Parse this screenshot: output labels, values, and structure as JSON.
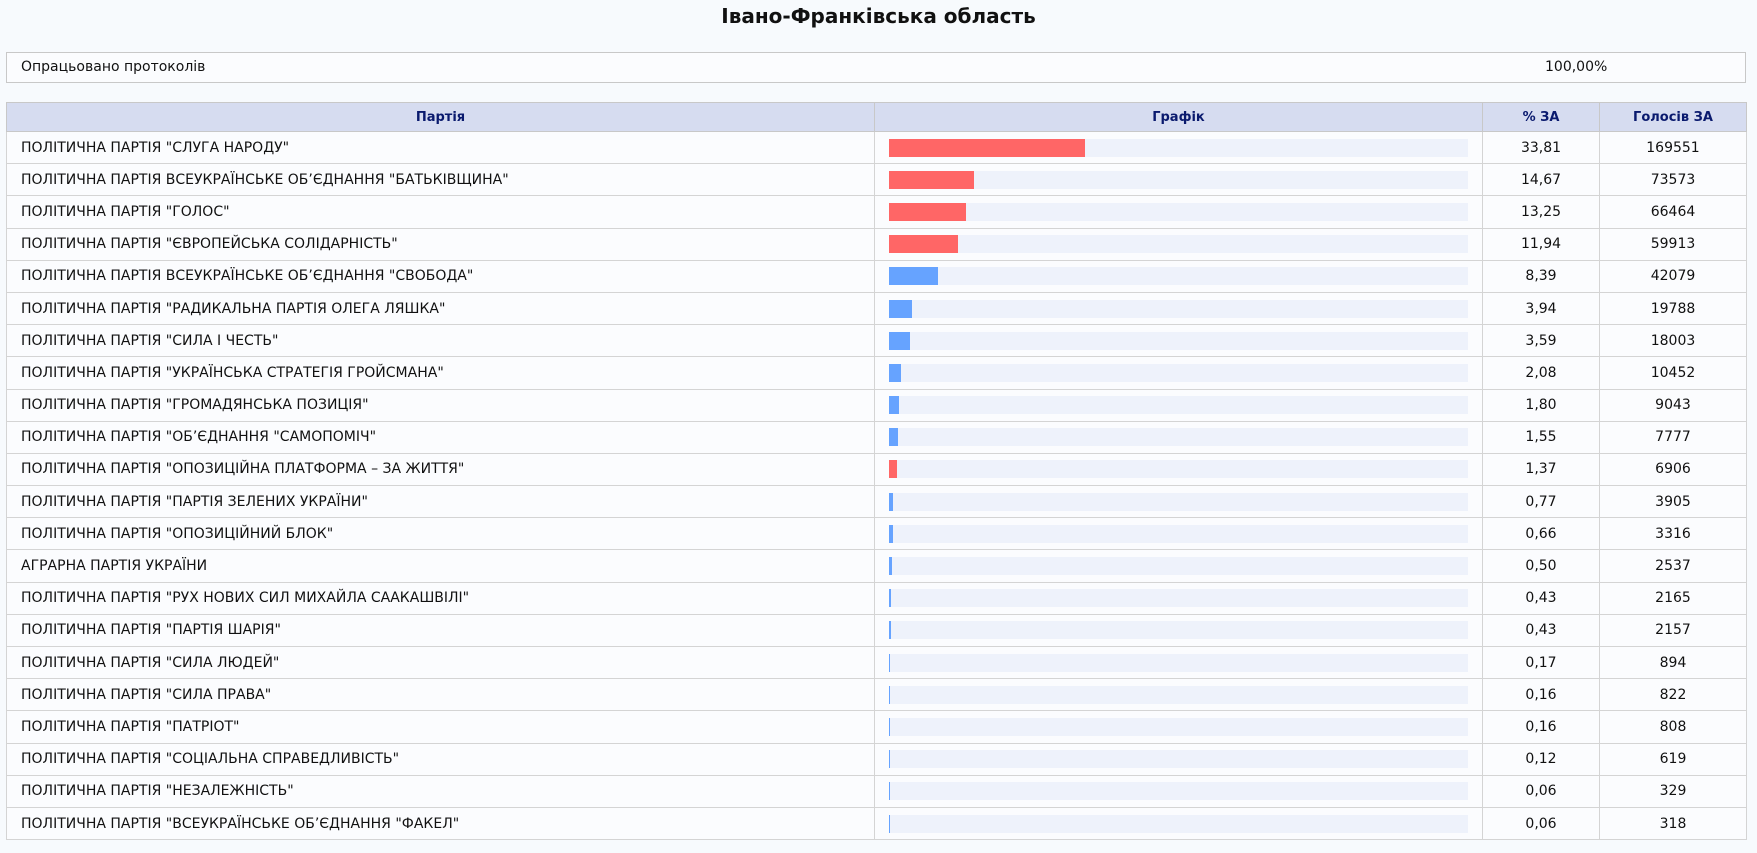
{
  "header": {
    "title": "Івано-Франківська область"
  },
  "processed": {
    "label": "Опрацьовано протоколів",
    "value": "100,00%"
  },
  "table": {
    "columns": [
      "Партія",
      "Графік",
      "% ЗА",
      "Голосів ЗА"
    ],
    "rows": [
      {
        "party": "ПОЛІТИЧНА ПАРТІЯ \"СЛУГА НАРОДУ\"",
        "percent": 33.81,
        "percent_label": "33,81",
        "votes": 169551,
        "color": "#ff6666"
      },
      {
        "party": "ПОЛІТИЧНА ПАРТІЯ ВСЕУКРАЇНСЬКЕ ОБ’ЄДНАННЯ \"БАТЬКІВЩИНА\"",
        "percent": 14.67,
        "percent_label": "14,67",
        "votes": 73573,
        "color": "#ff6666"
      },
      {
        "party": "ПОЛІТИЧНА ПАРТІЯ \"ГОЛОС\"",
        "percent": 13.25,
        "percent_label": "13,25",
        "votes": 66464,
        "color": "#ff6666"
      },
      {
        "party": "ПОЛІТИЧНА ПАРТІЯ \"ЄВРОПЕЙСЬКА СОЛІДАРНІСТЬ\"",
        "percent": 11.94,
        "percent_label": "11,94",
        "votes": 59913,
        "color": "#ff6666"
      },
      {
        "party": "ПОЛІТИЧНА ПАРТІЯ ВСЕУКРАЇНСЬКЕ ОБ’ЄДНАННЯ \"СВОБОДА\"",
        "percent": 8.39,
        "percent_label": "8,39",
        "votes": 42079,
        "color": "#66a3ff"
      },
      {
        "party": "ПОЛІТИЧНА ПАРТІЯ \"РАДИКАЛЬНА ПАРТІЯ ОЛЕГА ЛЯШКА\"",
        "percent": 3.94,
        "percent_label": "3,94",
        "votes": 19788,
        "color": "#66a3ff"
      },
      {
        "party": "ПОЛІТИЧНА ПАРТІЯ \"СИЛА І ЧЕСТЬ\"",
        "percent": 3.59,
        "percent_label": "3,59",
        "votes": 18003,
        "color": "#66a3ff"
      },
      {
        "party": "ПОЛІТИЧНА ПАРТІЯ \"УКРАЇНСЬКА СТРАТЕГІЯ ГРОЙСМАНА\"",
        "percent": 2.08,
        "percent_label": "2,08",
        "votes": 10452,
        "color": "#66a3ff"
      },
      {
        "party": "ПОЛІТИЧНА ПАРТІЯ \"ГРОМАДЯНСЬКА ПОЗИЦІЯ\"",
        "percent": 1.8,
        "percent_label": "1,80",
        "votes": 9043,
        "color": "#66a3ff"
      },
      {
        "party": "ПОЛІТИЧНА ПАРТІЯ \"ОБ’ЄДНАННЯ \"САМОПОМІЧ\"",
        "percent": 1.55,
        "percent_label": "1,55",
        "votes": 7777,
        "color": "#66a3ff"
      },
      {
        "party": "ПОЛІТИЧНА ПАРТІЯ \"ОПОЗИЦІЙНА ПЛАТФОРМА – ЗА ЖИТТЯ\"",
        "percent": 1.37,
        "percent_label": "1,37",
        "votes": 6906,
        "color": "#ff6666"
      },
      {
        "party": "ПОЛІТИЧНА ПАРТІЯ \"ПАРТІЯ ЗЕЛЕНИХ УКРАЇНИ\"",
        "percent": 0.77,
        "percent_label": "0,77",
        "votes": 3905,
        "color": "#66a3ff"
      },
      {
        "party": "ПОЛІТИЧНА ПАРТІЯ \"ОПОЗИЦІЙНИЙ БЛОК\"",
        "percent": 0.66,
        "percent_label": "0,66",
        "votes": 3316,
        "color": "#66a3ff"
      },
      {
        "party": "АГРАРНА ПАРТІЯ УКРАЇНИ",
        "percent": 0.5,
        "percent_label": "0,50",
        "votes": 2537,
        "color": "#66a3ff"
      },
      {
        "party": "ПОЛІТИЧНА ПАРТІЯ \"РУХ НОВИХ СИЛ МИХАЙЛА СААКАШВІЛІ\"",
        "percent": 0.43,
        "percent_label": "0,43",
        "votes": 2165,
        "color": "#66a3ff"
      },
      {
        "party": "ПОЛІТИЧНА ПАРТІЯ \"ПАРТІЯ ШАРІЯ\"",
        "percent": 0.43,
        "percent_label": "0,43",
        "votes": 2157,
        "color": "#66a3ff"
      },
      {
        "party": "ПОЛІТИЧНА ПАРТІЯ \"СИЛА ЛЮДЕЙ\"",
        "percent": 0.17,
        "percent_label": "0,17",
        "votes": 894,
        "color": "#66a3ff"
      },
      {
        "party": "ПОЛІТИЧНА ПАРТІЯ \"СИЛА ПРАВА\"",
        "percent": 0.16,
        "percent_label": "0,16",
        "votes": 822,
        "color": "#66a3ff"
      },
      {
        "party": "ПОЛІТИЧНА ПАРТІЯ \"ПАТРІОТ\"",
        "percent": 0.16,
        "percent_label": "0,16",
        "votes": 808,
        "color": "#66a3ff"
      },
      {
        "party": "ПОЛІТИЧНА ПАРТІЯ \"СОЦІАЛЬНА СПРАВЕДЛИВІСТЬ\"",
        "percent": 0.12,
        "percent_label": "0,12",
        "votes": 619,
        "color": "#66a3ff"
      },
      {
        "party": "ПОЛІТИЧНА ПАРТІЯ \"НЕЗАЛЕЖНІСТЬ\"",
        "percent": 0.06,
        "percent_label": "0,06",
        "votes": 329,
        "color": "#66a3ff"
      },
      {
        "party": "ПОЛІТИЧНА ПАРТІЯ \"ВСЕУКРАЇНСЬКЕ ОБ’ЄДНАННЯ \"ФАКЕЛ\"",
        "percent": 0.06,
        "percent_label": "0,06",
        "votes": 318,
        "color": "#66a3ff"
      }
    ]
  }
}
